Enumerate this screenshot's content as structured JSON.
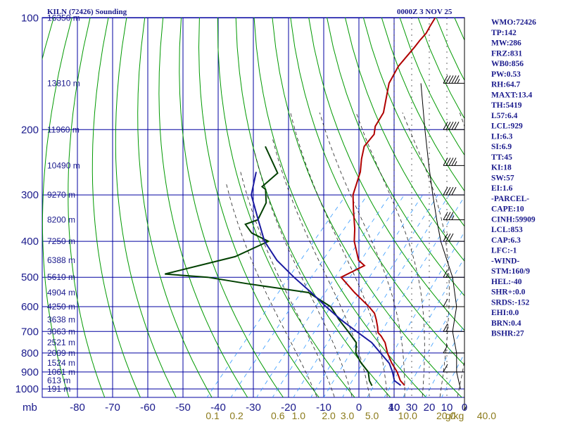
{
  "chart_data": {
    "type": "line",
    "subtype": "skew-t log-p sounding",
    "title": "KILN (72426) Sounding",
    "datetime": "0000Z  3 NOV 25",
    "x_axis_title": "mb",
    "temperature_ticks": [
      -80,
      -70,
      -60,
      -50,
      -40,
      -30,
      -20,
      -10,
      0,
      10
    ],
    "wind_ticks": [
      40,
      30,
      20,
      10,
      0
    ],
    "pressure_levels": [
      100,
      200,
      300,
      400,
      500,
      600,
      700,
      800,
      900,
      1000
    ],
    "height_labels": [
      {
        "p": 100,
        "label": "16350 m"
      },
      {
        "p": 150,
        "label": "13810 m"
      },
      {
        "p": 200,
        "label": "11960 m"
      },
      {
        "p": 250,
        "label": "10490 m"
      },
      {
        "p": 300,
        "label": "9270 m"
      },
      {
        "p": 350,
        "label": "8200 m"
      },
      {
        "p": 400,
        "label": "7250 m"
      },
      {
        "p": 450,
        "label": "6388 m"
      },
      {
        "p": 500,
        "label": "5610 m"
      },
      {
        "p": 550,
        "label": "4904 m"
      },
      {
        "p": 600,
        "label": "4250 m"
      },
      {
        "p": 650,
        "label": "3638 m"
      },
      {
        "p": 700,
        "label": "3063 m"
      },
      {
        "p": 750,
        "label": "2521 m"
      },
      {
        "p": 800,
        "label": "2009 m"
      },
      {
        "p": 850,
        "label": "1524 m"
      },
      {
        "p": 900,
        "label": "1061 m"
      },
      {
        "p": 950,
        "label": "613 m"
      },
      {
        "p": 1000,
        "label": "191 m"
      }
    ],
    "mixing_ratio_labels": [
      {
        "value": "0.1",
        "w": 0.1
      },
      {
        "value": "0.2",
        "w": 0.2
      },
      {
        "value": "0.6",
        "w": 0.6
      },
      {
        "value": "1.0",
        "w": 1.0
      },
      {
        "value": "2.0",
        "w": 2.0
      },
      {
        "value": "3.0",
        "w": 3.0
      },
      {
        "value": "5.0",
        "w": 5.0
      },
      {
        "value": "10.0",
        "w": 10.0
      },
      {
        "value": "20.0",
        "w": 20.0
      },
      {
        "value": "40.0",
        "w": 40.0
      }
    ],
    "mixing_ratio_unit": "g/kg",
    "series": [
      {
        "name": "Temperature",
        "color": "#b00000",
        "points": [
          [
            100,
            -71.5
          ],
          [
            105,
            -70.9
          ],
          [
            110,
            -70.2
          ],
          [
            115,
            -70.2
          ],
          [
            120,
            -70.0
          ],
          [
            135,
            -69.8
          ],
          [
            150,
            -68.2
          ],
          [
            180,
            -62.4
          ],
          [
            196,
            -61.3
          ],
          [
            206,
            -59.6
          ],
          [
            222,
            -59.4
          ],
          [
            240,
            -57.0
          ],
          [
            260,
            -54.1
          ],
          [
            300,
            -50.4
          ],
          [
            330,
            -46.4
          ],
          [
            370,
            -41.4
          ],
          [
            400,
            -38.4
          ],
          [
            450,
            -32.4
          ],
          [
            465,
            -29.4
          ],
          [
            500,
            -33.1
          ],
          [
            550,
            -25.4
          ],
          [
            600,
            -17.8
          ],
          [
            625,
            -14.6
          ],
          [
            650,
            -12.5
          ],
          [
            680,
            -10.3
          ],
          [
            705,
            -8.7
          ],
          [
            720,
            -7.0
          ],
          [
            750,
            -4.2
          ],
          [
            800,
            -0.9
          ],
          [
            850,
            2.7
          ],
          [
            900,
            6.6
          ],
          [
            950,
            9.7
          ],
          [
            978,
            12.1
          ]
        ]
      },
      {
        "name": "Dewpoint",
        "color": "#004000",
        "points": [
          [
            222,
            -87.5
          ],
          [
            262,
            -77.3
          ],
          [
            285,
            -78.3
          ],
          [
            290,
            -76.6
          ],
          [
            315,
            -73.1
          ],
          [
            350,
            -71.2
          ],
          [
            360,
            -73.6
          ],
          [
            380,
            -69.6
          ],
          [
            400,
            -62.8
          ],
          [
            440,
            -68.4
          ],
          [
            490,
            -84.0
          ],
          [
            500,
            -71.0
          ],
          [
            520,
            -58.4
          ],
          [
            550,
            -38.5
          ],
          [
            600,
            -28.7
          ],
          [
            650,
            -23.1
          ],
          [
            700,
            -17.5
          ],
          [
            750,
            -12.4
          ],
          [
            800,
            -9.9
          ],
          [
            850,
            -6.0
          ],
          [
            900,
            -1.6
          ],
          [
            950,
            0.9
          ],
          [
            980,
            2.9
          ]
        ]
      },
      {
        "name": "Parcel",
        "color": "#1a1aa0",
        "points": [
          [
            260,
            -83.7
          ],
          [
            300,
            -79.3
          ],
          [
            350,
            -71.1
          ],
          [
            400,
            -63.9
          ],
          [
            450,
            -55.6
          ],
          [
            500,
            -46.5
          ],
          [
            550,
            -37.7
          ],
          [
            600,
            -30.0
          ],
          [
            650,
            -22.6
          ],
          [
            700,
            -15.1
          ],
          [
            750,
            -8.0
          ],
          [
            800,
            -2.9
          ],
          [
            853,
            2.2
          ],
          [
            900,
            5.3
          ],
          [
            950,
            8.0
          ],
          [
            978,
            11.0
          ]
        ]
      }
    ],
    "wind_barbs": [
      {
        "p": 150,
        "dir": 270,
        "speed_kt": 55
      },
      {
        "p": 200,
        "dir": 270,
        "speed_kt": 50
      },
      {
        "p": 250,
        "dir": 270,
        "speed_kt": 45
      },
      {
        "p": 300,
        "dir": 270,
        "speed_kt": 40
      },
      {
        "p": 350,
        "dir": 270,
        "speed_kt": 35
      },
      {
        "p": 400,
        "dir": 270,
        "speed_kt": 30
      },
      {
        "p": 500,
        "dir": 270,
        "speed_kt": 15
      },
      {
        "p": 600,
        "dir": 270,
        "speed_kt": 10
      },
      {
        "p": 700,
        "dir": 270,
        "speed_kt": 15
      },
      {
        "p": 800,
        "dir": 270,
        "speed_kt": 10
      },
      {
        "p": 900,
        "dir": 270,
        "speed_kt": 10
      },
      {
        "p": 1000,
        "dir": 180,
        "speed_kt": 5
      }
    ],
    "indices": [
      "WMO:72426",
      "TP:142",
      "MW:286",
      "FRZ:831",
      "WB0:856",
      "PW:0.53",
      "RH:64.7",
      "MAXT:13.4",
      "TH:5419",
      "L57:6.4",
      "LCL:929",
      "LI:6.3",
      "SI:6.9",
      "TT:45",
      "KI:18",
      "SW:57",
      "EI:1.6",
      "-PARCEL-",
      "CAPE:10",
      "CINH:59909",
      "LCL:853",
      "CAP:6.3",
      "LFC:-1",
      "-WIND-",
      "STM:160/9",
      "HEL:-40",
      "SHR+:0.0",
      "SRDS:-152",
      "EHI:0.0",
      "BRN:0.4",
      "BSHR:27"
    ]
  },
  "colors": {
    "grid": "#0000a0",
    "dry_adiabat": "#009900",
    "moist_adiabat": "#202020",
    "mixing_ratio": "#3399ff",
    "text": "#1a1a8c"
  }
}
